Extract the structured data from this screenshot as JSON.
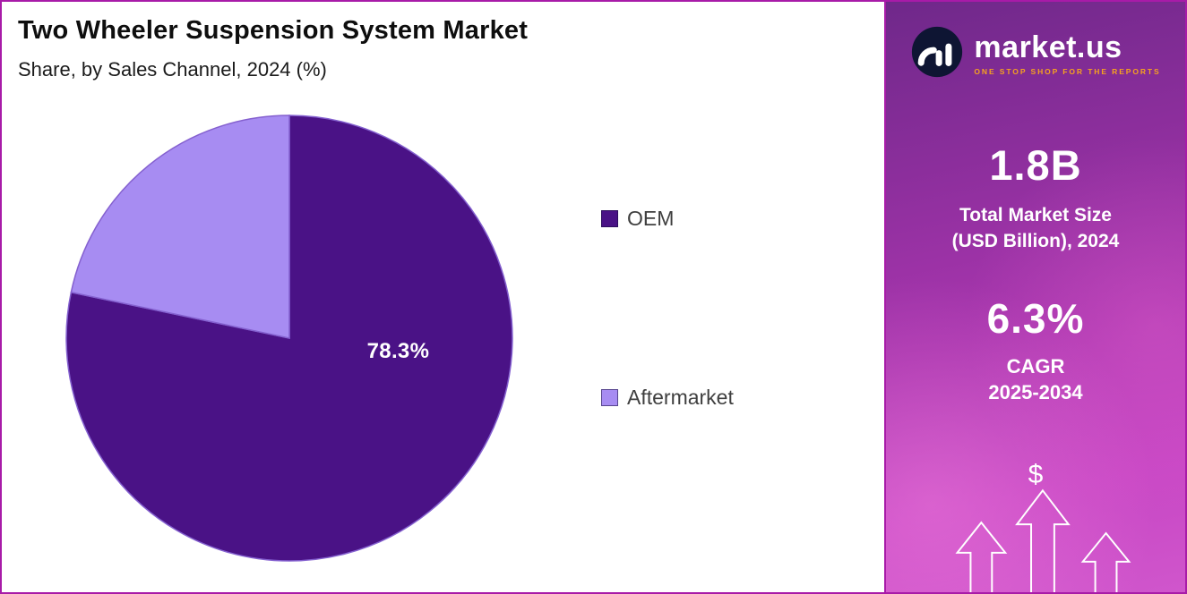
{
  "header": {
    "title": "Two Wheeler Suspension System Market",
    "subtitle": "Share, by Sales Channel, 2024 (%)"
  },
  "chart_data": {
    "type": "pie",
    "title": "Two Wheeler Suspension System Market",
    "subtitle": "Share, by Sales Channel, 2024 (%)",
    "categories": [
      "OEM",
      "Aftermarket"
    ],
    "values": [
      78.3,
      21.7
    ],
    "unit": "%",
    "colors": [
      "#4a1286",
      "#a78cf2"
    ],
    "slice_stroke": "#8460cf",
    "data_labels": [
      "78.3%"
    ],
    "start_angle_deg": -90,
    "direction": "clockwise",
    "legend_position": "right"
  },
  "sidebar": {
    "logo": {
      "brand": "market.us",
      "tagline": "ONE STOP SHOP FOR THE REPORTS"
    },
    "market_size": {
      "value": "1.8B",
      "line1": "Total Market Size",
      "line2": "(USD Billion), 2024"
    },
    "cagr": {
      "value": "6.3%",
      "line1": "CAGR",
      "line2": "2025-2034"
    },
    "dollar_symbol": "$",
    "colors": {
      "gradient_top": "#6f288a",
      "gradient_bottom": "#d056cc",
      "tagline_accent": "#f6a21e",
      "page_border": "#a81ba8"
    }
  }
}
